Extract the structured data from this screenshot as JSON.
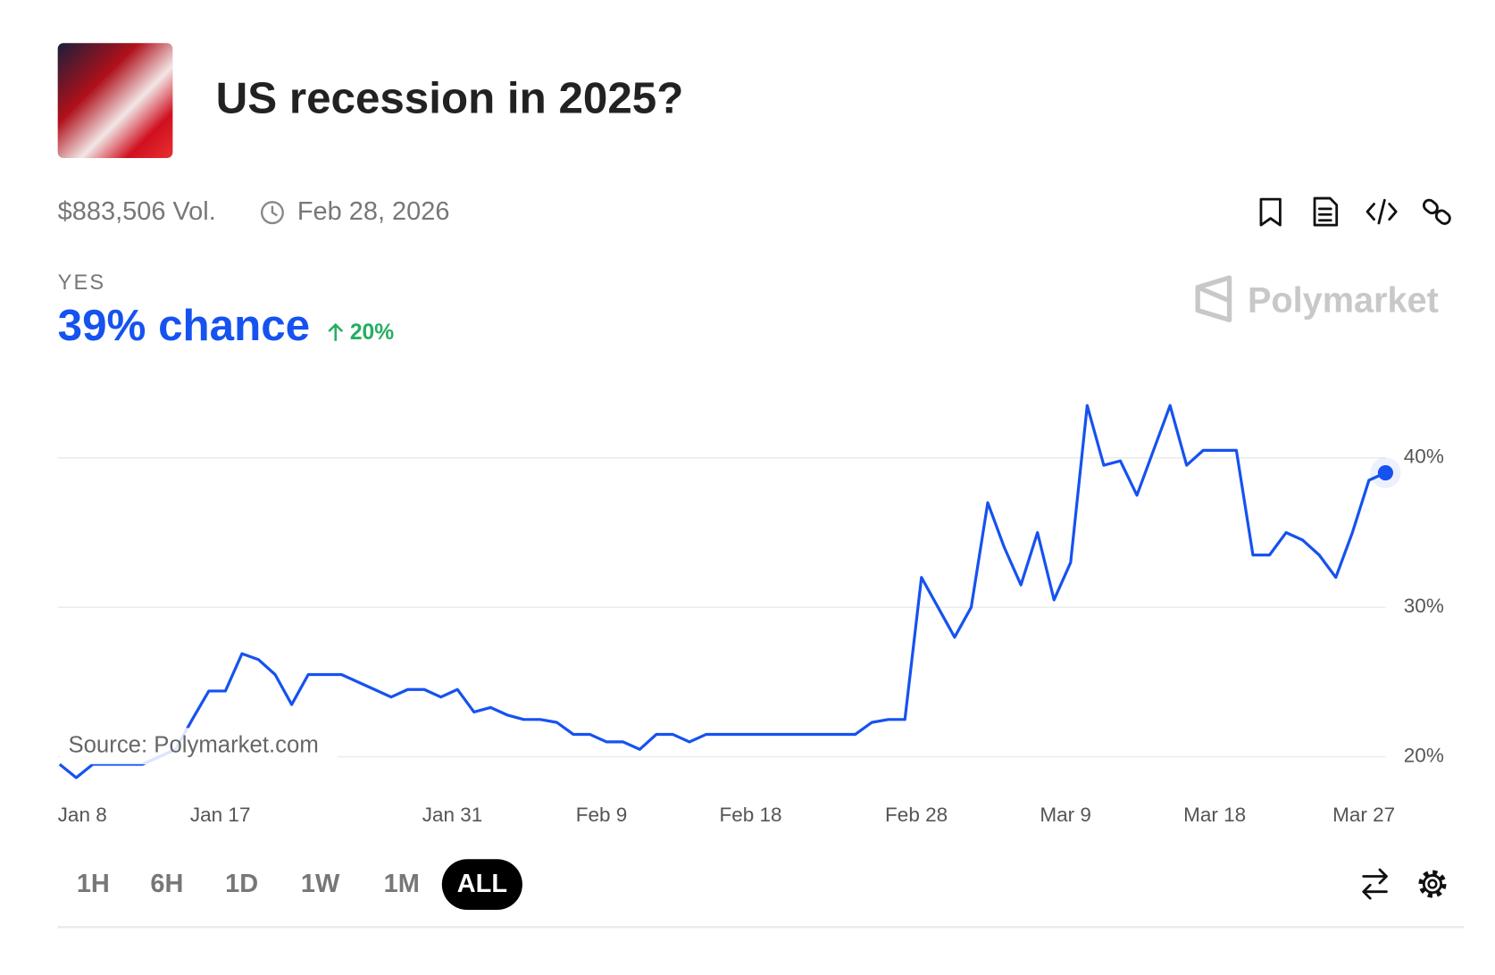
{
  "header": {
    "title": "US recession in 2025?",
    "volume": "$883,506 Vol.",
    "end_date": "Feb 28, 2026",
    "outcome": "YES",
    "chance": "39% chance",
    "change": "20%",
    "brand": "Polymarket",
    "source": "Source: Polymarket.com"
  },
  "ranges": [
    "1H",
    "6H",
    "1D",
    "1W",
    "1M",
    "ALL"
  ],
  "chart_data": {
    "type": "line",
    "x": [
      "Jan 8",
      "Jan 9",
      "Jan 10",
      "Jan 11",
      "Jan 12",
      "Jan 13",
      "Jan 14",
      "Jan 15",
      "Jan 16",
      "Jan 17",
      "Jan 18",
      "Jan 19",
      "Jan 20",
      "Jan 21",
      "Jan 22",
      "Jan 23",
      "Jan 24",
      "Jan 25",
      "Jan 26",
      "Jan 27",
      "Jan 28",
      "Jan 29",
      "Jan 30",
      "Jan 31",
      "Feb 1",
      "Feb 2",
      "Feb 3",
      "Feb 4",
      "Feb 5",
      "Feb 6",
      "Feb 7",
      "Feb 8",
      "Feb 9",
      "Feb 10",
      "Feb 11",
      "Feb 12",
      "Feb 13",
      "Feb 14",
      "Feb 15",
      "Feb 16",
      "Feb 17",
      "Feb 18",
      "Feb 19",
      "Feb 20",
      "Feb 21",
      "Feb 22",
      "Feb 23",
      "Feb 24",
      "Feb 25",
      "Feb 26",
      "Feb 27",
      "Feb 28",
      "Mar 1",
      "Mar 2",
      "Mar 3",
      "Mar 4",
      "Mar 5",
      "Mar 6",
      "Mar 7",
      "Mar 8",
      "Mar 9",
      "Mar 10",
      "Mar 11",
      "Mar 12",
      "Mar 13",
      "Mar 14",
      "Mar 15",
      "Mar 16",
      "Mar 17",
      "Mar 18",
      "Mar 19",
      "Mar 20",
      "Mar 21",
      "Mar 22",
      "Mar 23",
      "Mar 24",
      "Mar 25",
      "Mar 26",
      "Mar 27",
      "Mar 28",
      "Mar 29"
    ],
    "series": [
      {
        "name": "YES",
        "color": "#1652f0",
        "values": [
          19.5,
          18.6,
          19.5,
          19.5,
          19.5,
          19.5,
          20,
          20.5,
          22.5,
          24.4,
          24.4,
          26.9,
          26.5,
          25.5,
          23.5,
          25.5,
          25.5,
          25.5,
          25,
          24.5,
          24,
          24.5,
          24.5,
          24,
          24.5,
          23,
          23.3,
          22.8,
          22.5,
          22.5,
          22.3,
          21.5,
          21.5,
          21,
          21,
          20.5,
          21.5,
          21.5,
          21,
          21.5,
          21.5,
          21.5,
          21.5,
          21.5,
          21.5,
          21.5,
          21.5,
          21.5,
          21.5,
          22.3,
          22.5,
          22.5,
          32,
          30,
          28,
          30,
          37,
          34,
          31.5,
          35,
          30.5,
          33,
          43.5,
          39.5,
          39.8,
          37.5,
          40.5,
          43.5,
          39.5,
          40.5,
          40.5,
          40.5,
          33.5,
          33.5,
          35,
          34.5,
          33.5,
          32,
          35,
          38.5,
          39
        ]
      }
    ],
    "xticks": [
      "Jan 8",
      "Jan 17",
      "Jan 31",
      "Feb 9",
      "Feb 18",
      "Feb 28",
      "Mar 9",
      "Mar 18",
      "Mar 27"
    ],
    "ylim": [
      17,
      45
    ],
    "yticks": [
      {
        "value": 20,
        "label": "20%"
      },
      {
        "value": 30,
        "label": "30%"
      },
      {
        "value": 40,
        "label": "40%"
      }
    ],
    "grid": true
  }
}
